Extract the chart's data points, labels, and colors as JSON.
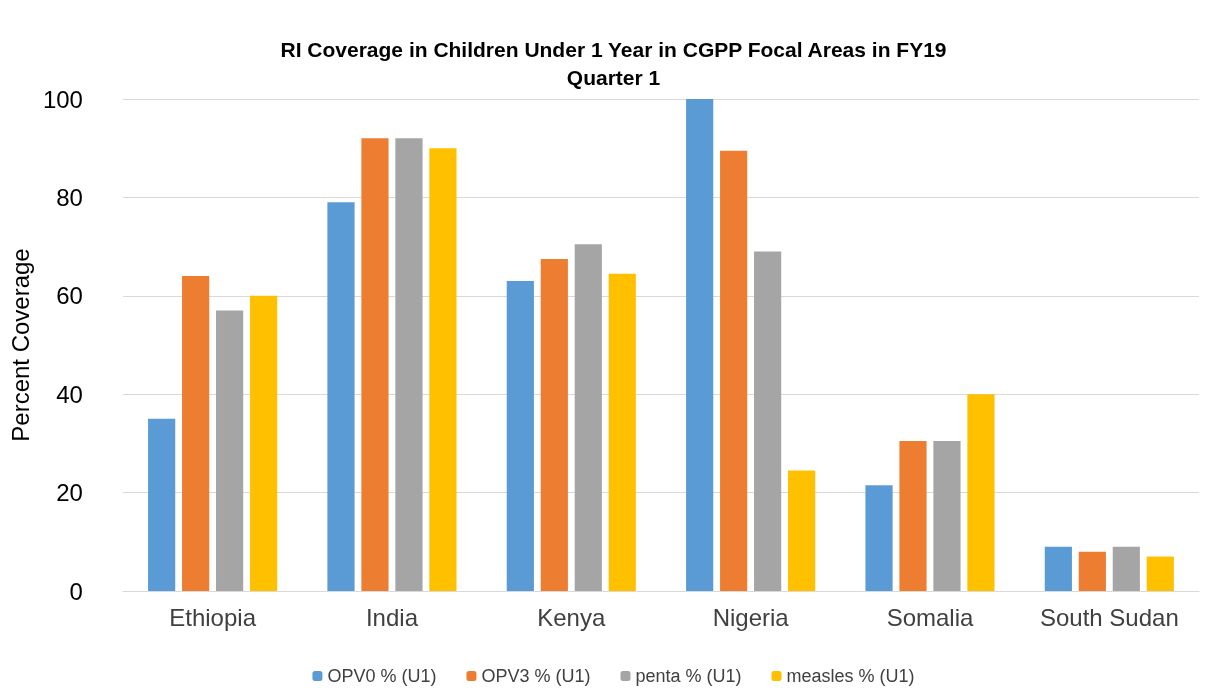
{
  "chart_data": {
    "type": "bar",
    "title": "RI Coverage in Children Under 1 Year in CGPP Focal Areas in FY19\nQuarter 1",
    "ylabel": "Percent Coverage",
    "categories": [
      "Ethiopia",
      "India",
      "Kenya",
      "Nigeria",
      "Somalia",
      "South Sudan"
    ],
    "series": [
      {
        "name": "OPV0 % (U1)",
        "color": "#5b9bd5",
        "values": [
          35,
          79,
          63,
          100,
          21.5,
          9
        ]
      },
      {
        "name": "OPV3 % (U1)",
        "color": "#ed7d31",
        "values": [
          64,
          92,
          67.5,
          89.5,
          30.5,
          8
        ]
      },
      {
        "name": "penta % (U1)",
        "color": "#a5a5a5",
        "values": [
          57,
          92,
          70.5,
          69,
          30.5,
          9
        ]
      },
      {
        "name": "measles % (U1)",
        "color": "#ffc000",
        "values": [
          60,
          90,
          64.5,
          24.5,
          40,
          7
        ]
      }
    ],
    "ylim": [
      0,
      100
    ],
    "yticks": [
      0,
      20,
      40,
      60,
      80,
      100
    ],
    "grid": "y",
    "legend": "bottom"
  }
}
